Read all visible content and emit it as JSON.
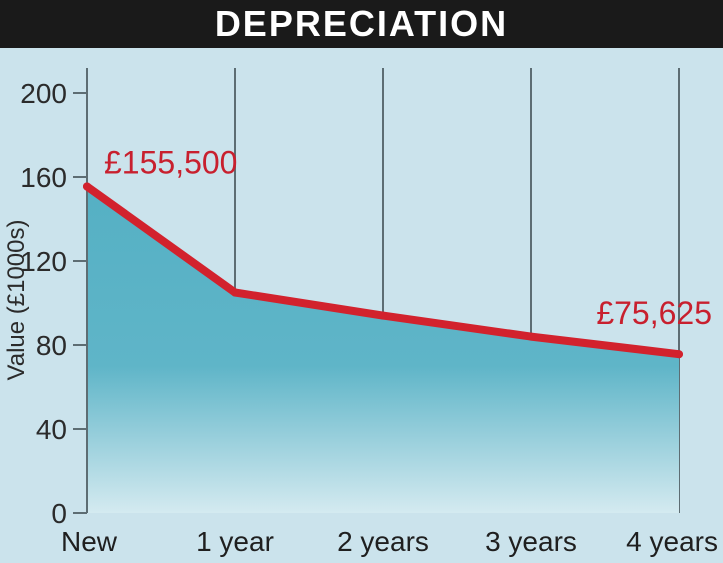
{
  "chart_data": {
    "type": "area",
    "title": "DEPRECIATION",
    "ylabel": "Value (£1000s)",
    "xlabel": "",
    "categories": [
      "New",
      "1 year",
      "2 years",
      "3 years",
      "4 years"
    ],
    "values": [
      155.5,
      105,
      94,
      84,
      75.625
    ],
    "yticks": [
      0,
      40,
      80,
      120,
      160,
      200
    ],
    "ylim": [
      0,
      210
    ],
    "grid": true,
    "annotations": [
      {
        "category": "New",
        "text": "£155,500"
      },
      {
        "category": "4 years",
        "text": "£75,625"
      }
    ],
    "colors": {
      "line": "#d2222d",
      "area_top": "#55b0c4",
      "area_bottom": "#d4eaf0",
      "background": "#cbe3ec",
      "title_bar": "#1a1a1a"
    }
  }
}
